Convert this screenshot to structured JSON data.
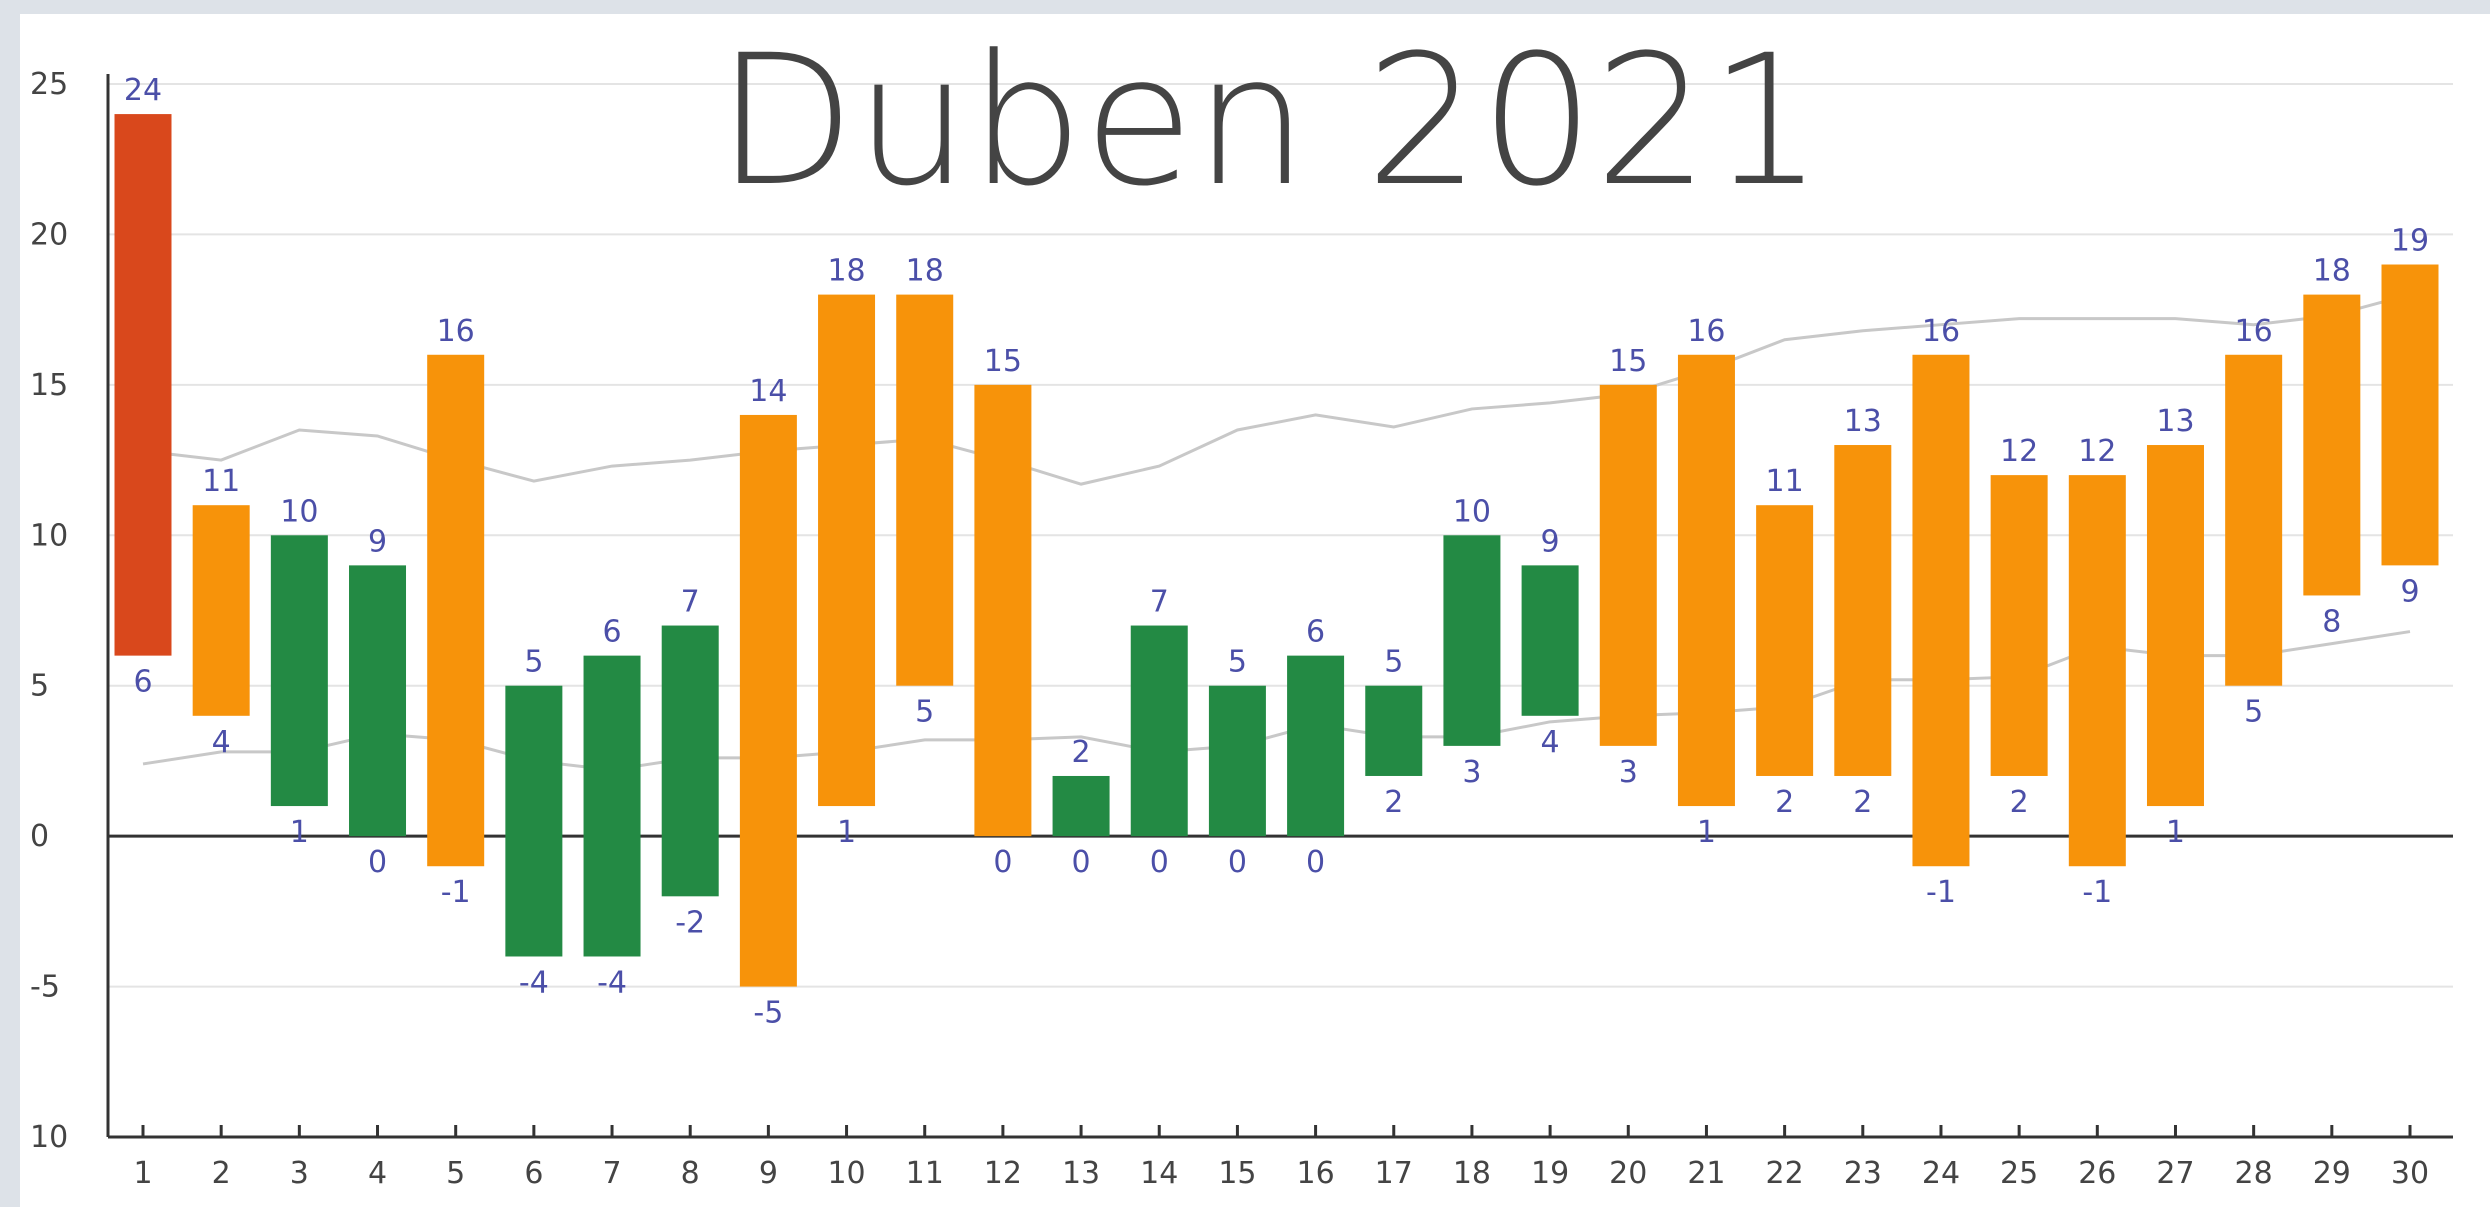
{
  "chart_data": {
    "type": "floating-bar",
    "title": "Duben 2021",
    "categories": [
      "1",
      "2",
      "3",
      "4",
      "5",
      "6",
      "7",
      "8",
      "9",
      "10",
      "11",
      "12",
      "13",
      "14",
      "15",
      "16",
      "17",
      "18",
      "19",
      "20",
      "21",
      "22",
      "23",
      "24",
      "25",
      "26",
      "27",
      "28",
      "29",
      "30"
    ],
    "max": [
      24,
      11,
      10,
      9,
      16,
      5,
      6,
      7,
      14,
      18,
      18,
      15,
      2,
      7,
      5,
      6,
      5,
      10,
      9,
      15,
      16,
      11,
      13,
      16,
      12,
      12,
      13,
      16,
      18,
      19
    ],
    "min": [
      6,
      4,
      1,
      0,
      -1,
      -4,
      -4,
      -2,
      -5,
      1,
      5,
      0,
      0,
      0,
      0,
      0,
      2,
      3,
      4,
      3,
      1,
      2,
      2,
      -1,
      2,
      -1,
      1,
      5,
      8,
      9
    ],
    "colors": [
      "#d9481c",
      "#f7930a",
      "#238a44",
      "#238a44",
      "#f7930a",
      "#238a44",
      "#238a44",
      "#238a44",
      "#f7930a",
      "#f7930a",
      "#f7930a",
      "#f7930a",
      "#238a44",
      "#238a44",
      "#238a44",
      "#238a44",
      "#238a44",
      "#238a44",
      "#238a44",
      "#f7930a",
      "#f7930a",
      "#f7930a",
      "#f7930a",
      "#f7930a",
      "#f7930a",
      "#f7930a",
      "#f7930a",
      "#f7930a",
      "#f7930a",
      "#f7930a"
    ],
    "lines": [
      {
        "color": "#c8c8c8",
        "values": [
          12.8,
          12.5,
          13.5,
          13.3,
          12.5,
          11.8,
          12.3,
          12.5,
          12.8,
          13,
          13.2,
          12.5,
          11.7,
          12.3,
          13.5,
          14,
          13.6,
          14.2,
          14.4,
          14.7,
          15.5,
          16.5,
          16.8,
          17,
          17.2,
          17.2,
          17.2,
          17,
          17.3,
          18
        ]
      },
      {
        "color": "#c8c8c8",
        "values": [
          2.4,
          2.8,
          2.8,
          3.4,
          3.2,
          2.5,
          2.2,
          2.6,
          2.6,
          2.8,
          3.2,
          3.2,
          3.3,
          2.8,
          3.0,
          3.7,
          3.3,
          3.3,
          3.8,
          4.0,
          4.1,
          4.3,
          5.2,
          5.2,
          5.3,
          6.3,
          6.0,
          6.0,
          6.4,
          6.8
        ]
      }
    ],
    "ylim": [
      -10,
      25
    ],
    "yticks": [
      25,
      20,
      15,
      10,
      5,
      0,
      -5,
      {
        "value": -10,
        "label": "10"
      }
    ],
    "grid": true
  }
}
